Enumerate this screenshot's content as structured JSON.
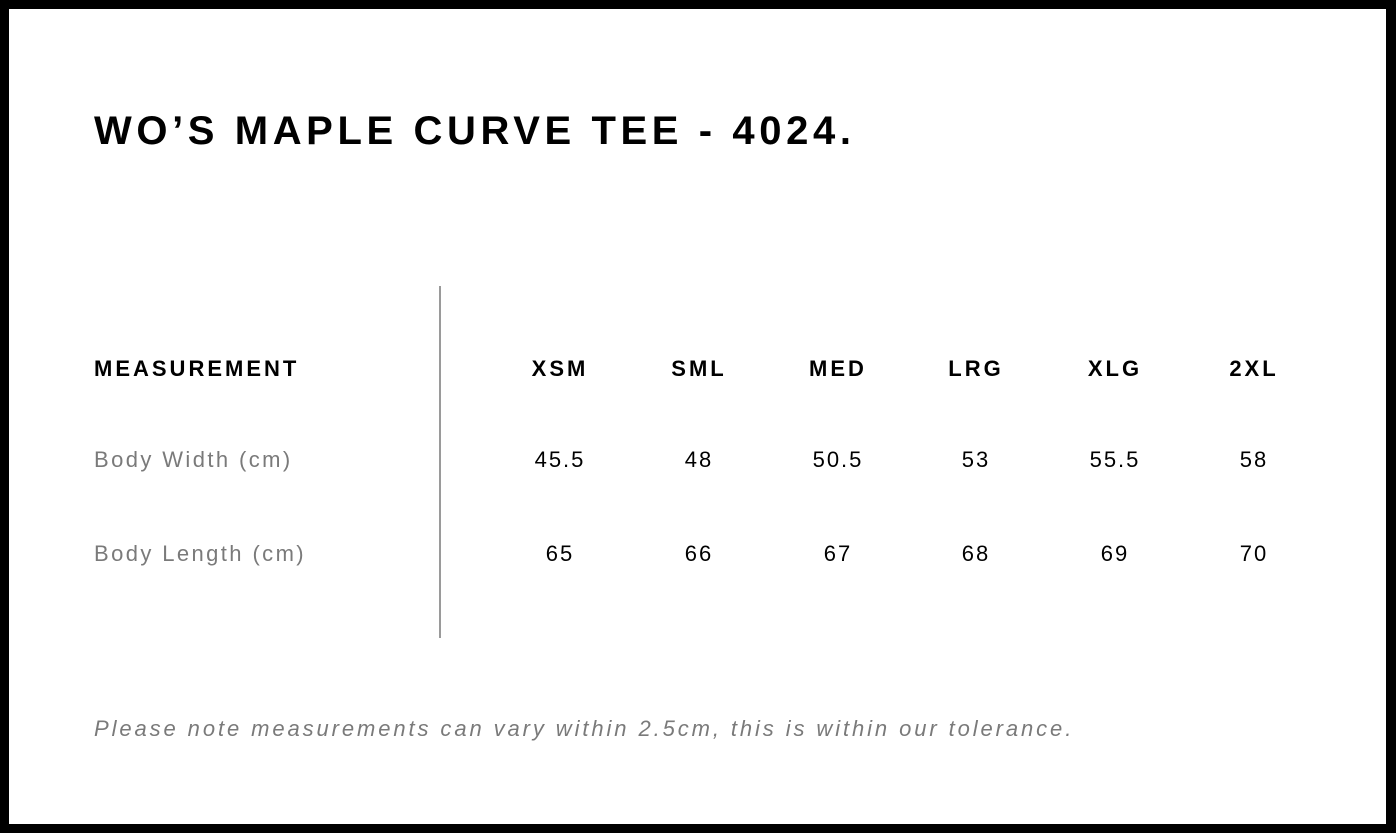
{
  "title": "WO’S MAPLE CURVE TEE - 4024.",
  "table": {
    "header": "MEASUREMENT",
    "sizes": [
      "XSM",
      "SML",
      "MED",
      "LRG",
      "XLG",
      "2XL"
    ],
    "rows": [
      {
        "label": "Body Width (cm)",
        "values": [
          "45.5",
          "48",
          "50.5",
          "53",
          "55.5",
          "58"
        ]
      },
      {
        "label": "Body Length (cm)",
        "values": [
          "65",
          "66",
          "67",
          "68",
          "69",
          "70"
        ]
      }
    ]
  },
  "note": "Please note measurements can vary within 2.5cm, this is within our tolerance."
}
